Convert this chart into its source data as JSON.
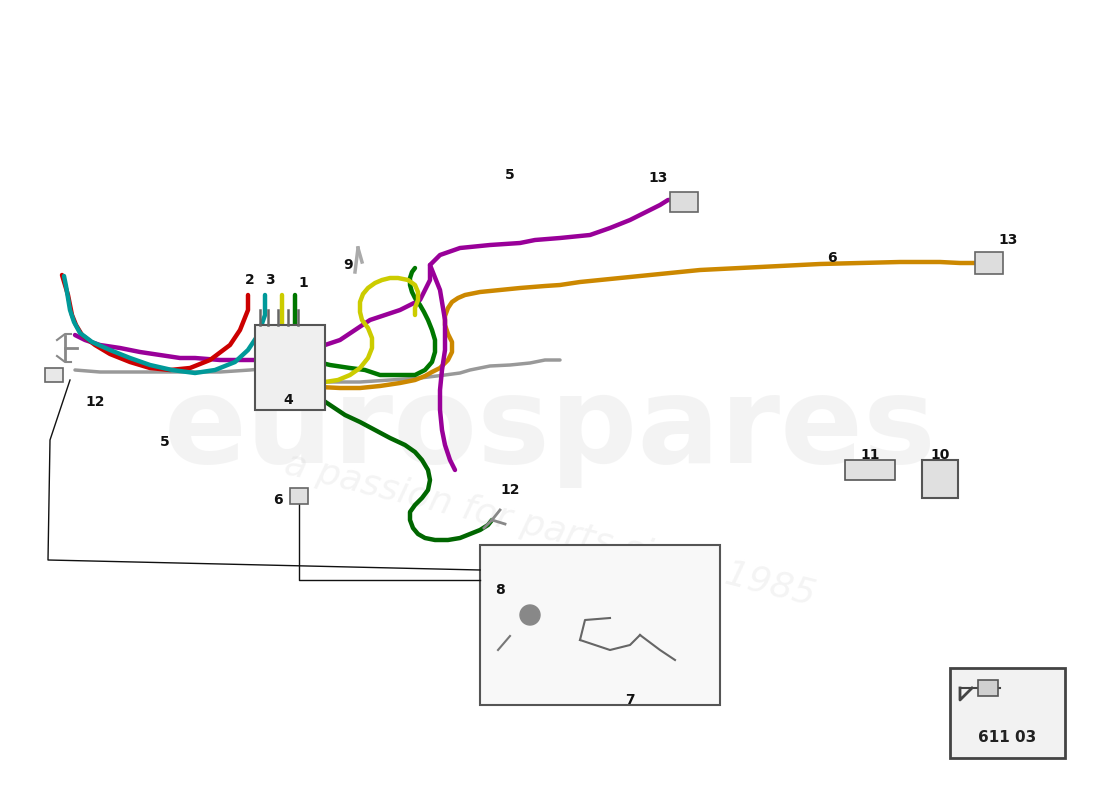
{
  "bg_color": "#ffffff",
  "part_number": "611 03",
  "watermark1": "eurospares",
  "watermark2": "a passion for parts since 1985",
  "lw": 3.2,
  "lw_thin": 2.0,
  "colors": {
    "purple": "#990099",
    "red": "#CC0000",
    "teal": "#009999",
    "green": "#007700",
    "yellow": "#CCCC00",
    "gray": "#999999",
    "gold": "#CC8800",
    "dkgreen": "#006600",
    "black": "#111111",
    "lgray": "#aaaaaa",
    "mgray": "#777777"
  }
}
